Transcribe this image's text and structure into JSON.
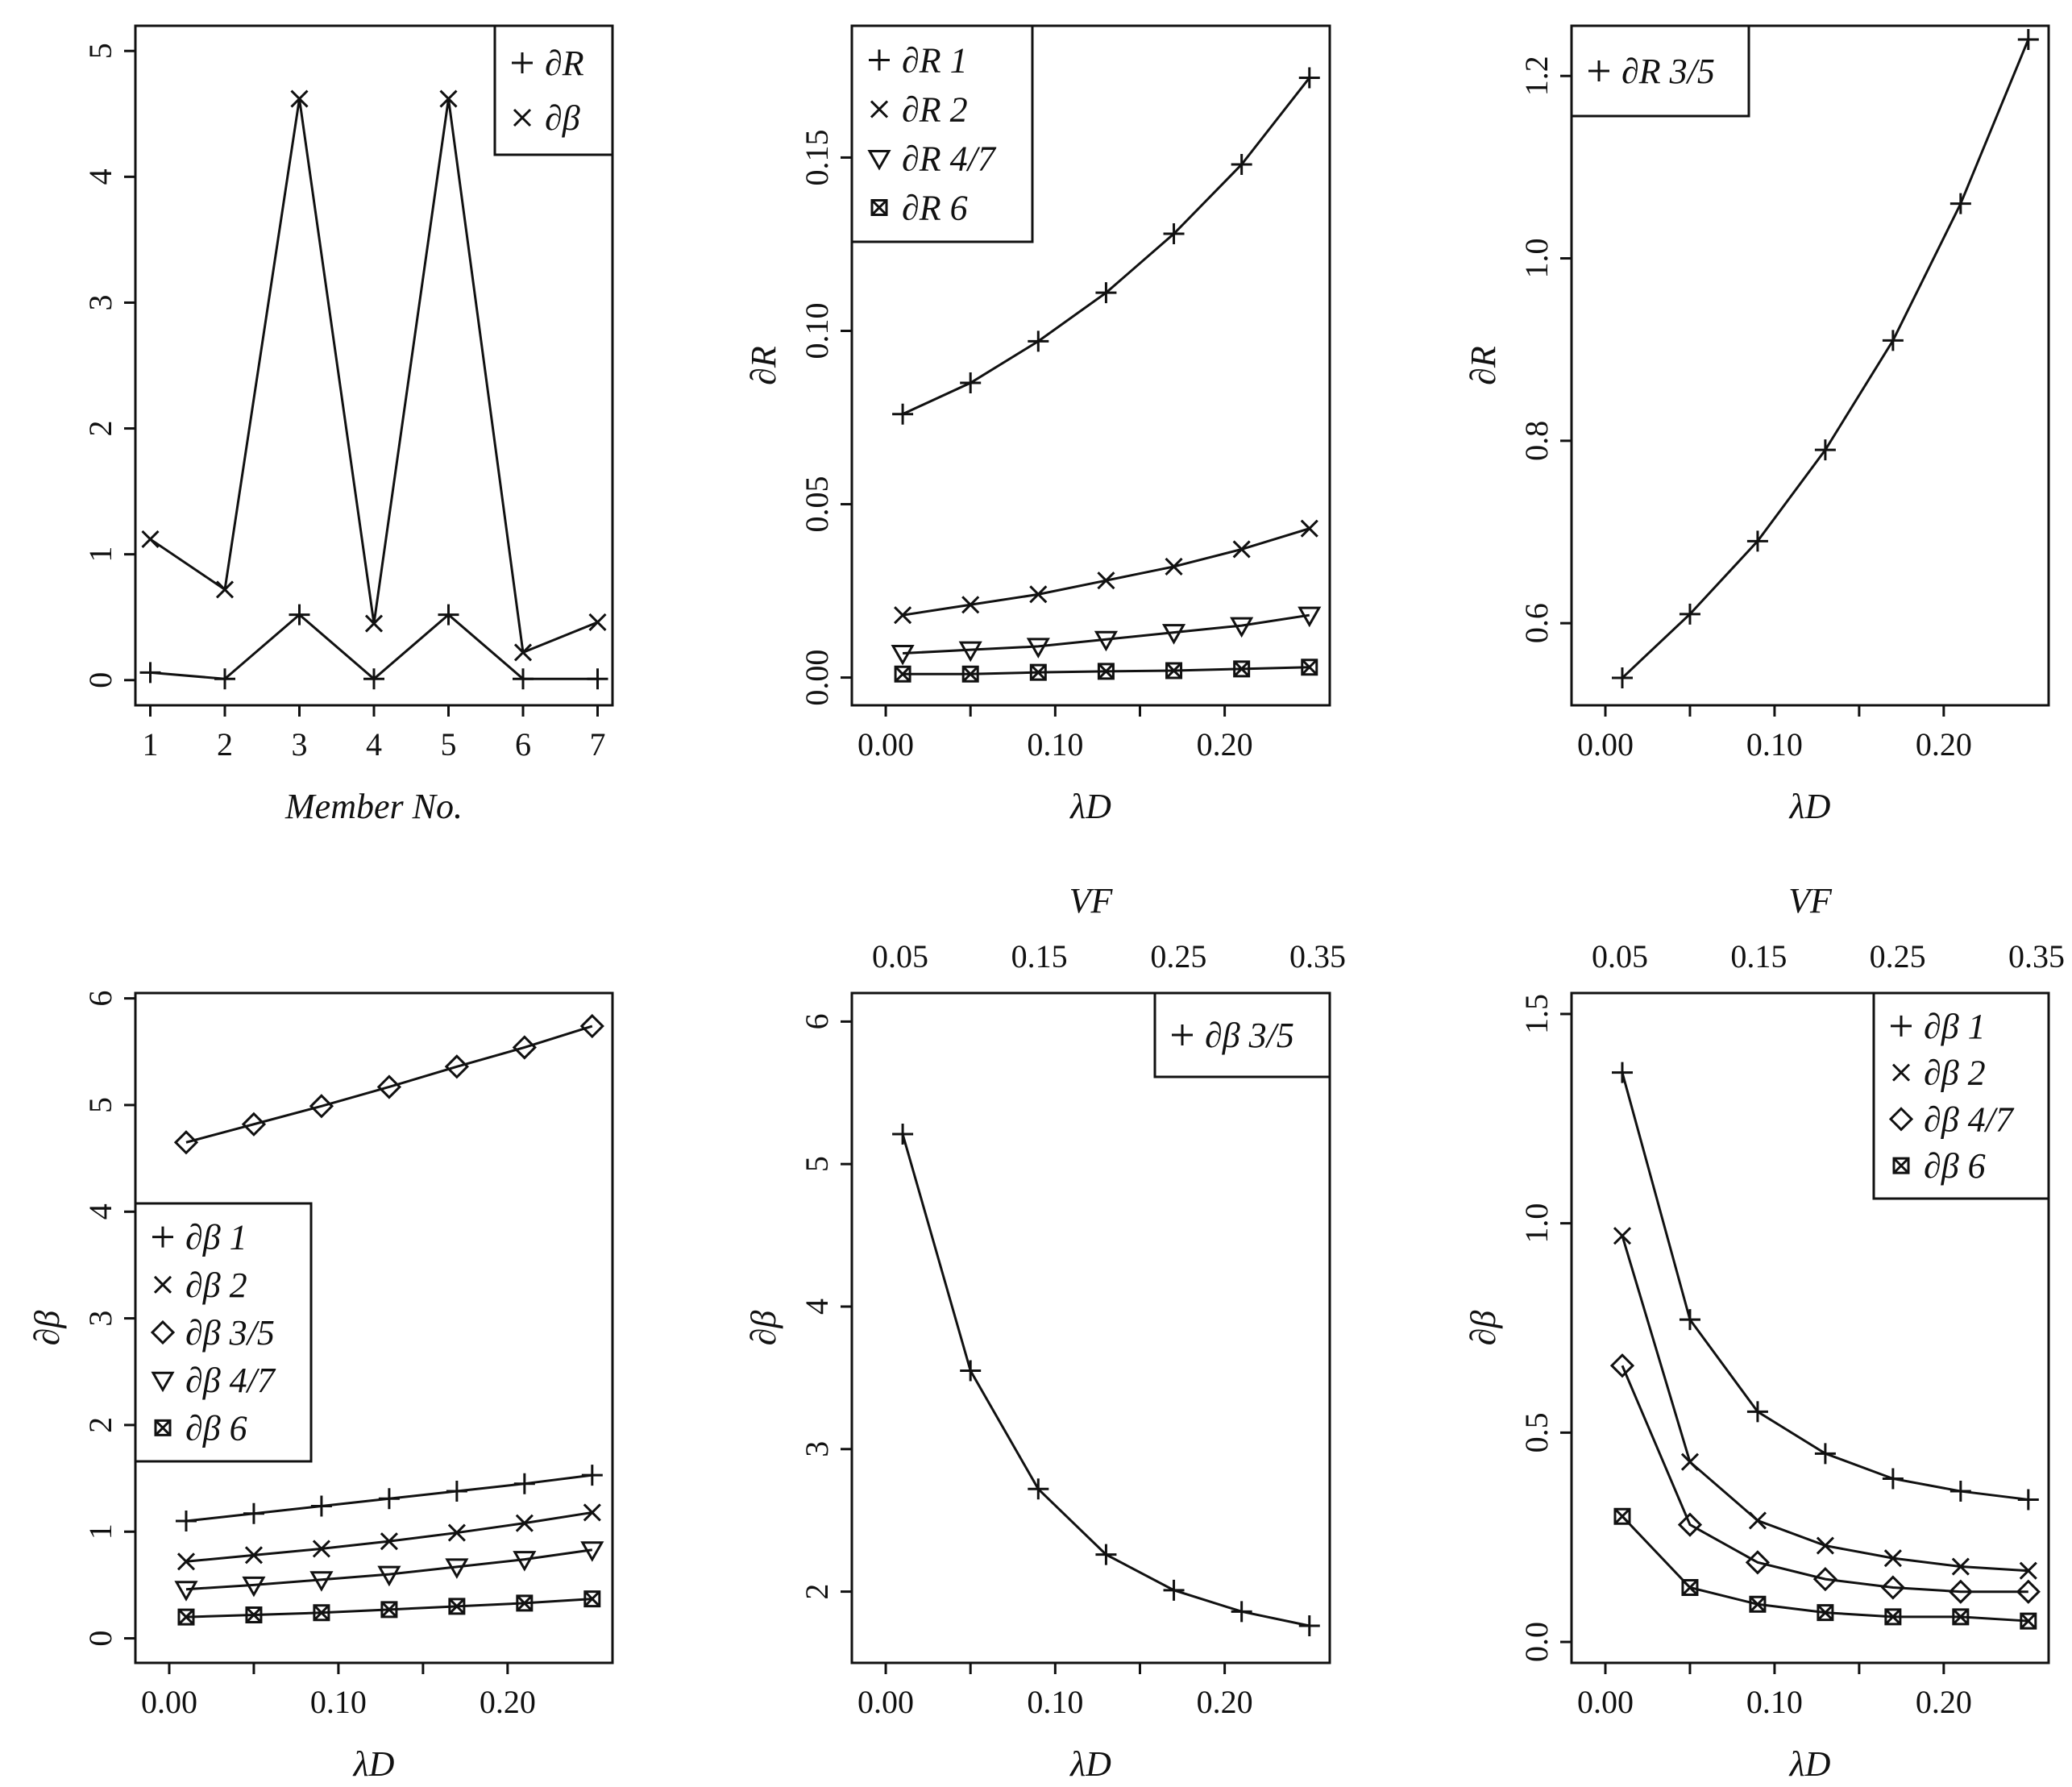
{
  "figure": {
    "colors": {
      "ink": "#111111",
      "background": "#ffffff"
    }
  },
  "chart_data": [
    {
      "id": "p1",
      "type": "line",
      "xlabel": "Member No.",
      "ylabel": "",
      "xlim": [
        0.8,
        7.2
      ],
      "ylim": [
        -0.2,
        5.2
      ],
      "x_ticks": [
        1,
        2,
        3,
        4,
        5,
        6,
        7
      ],
      "x_tick_labels": [
        "1",
        "2",
        "3",
        "4",
        "5",
        "6",
        "7"
      ],
      "y_ticks": [
        0,
        1,
        2,
        3,
        4,
        5
      ],
      "y_tick_labels": [
        "0",
        "1",
        "2",
        "3",
        "4",
        "5"
      ],
      "legend": "top-right",
      "series": [
        {
          "name": "∂R",
          "marker": "plus",
          "x": [
            1,
            2,
            3,
            4,
            5,
            6,
            7
          ],
          "values": [
            0.06,
            0.01,
            0.52,
            0.01,
            0.52,
            0.01,
            0.01
          ]
        },
        {
          "name": "∂β",
          "marker": "x",
          "x": [
            1,
            2,
            3,
            4,
            5,
            6,
            7
          ],
          "values": [
            1.12,
            0.72,
            4.62,
            0.45,
            4.62,
            0.22,
            0.46
          ]
        }
      ]
    },
    {
      "id": "p2",
      "type": "line",
      "xlabel": "λD",
      "ylabel": "∂R",
      "xlim": [
        -0.02,
        0.262
      ],
      "ylim": [
        -0.008,
        0.188
      ],
      "x_ticks": [
        0.0,
        0.1,
        0.2
      ],
      "x_tick_labels": [
        "0.00",
        "0.10",
        "0.20"
      ],
      "x_minor_ticks": [
        0.05,
        0.15
      ],
      "y_ticks": [
        0.0,
        0.05,
        0.1,
        0.15
      ],
      "y_tick_labels": [
        "0.00",
        "0.05",
        "0.10",
        "0.15"
      ],
      "legend": "top-left",
      "series": [
        {
          "name": "∂R 1",
          "marker": "plus",
          "x": [
            0.01,
            0.05,
            0.09,
            0.13,
            0.17,
            0.21,
            0.25
          ],
          "values": [
            0.076,
            0.085,
            0.097,
            0.111,
            0.128,
            0.148,
            0.173
          ]
        },
        {
          "name": "∂R 2",
          "marker": "x",
          "x": [
            0.01,
            0.05,
            0.09,
            0.13,
            0.17,
            0.21,
            0.25
          ],
          "values": [
            0.018,
            0.021,
            0.024,
            0.028,
            0.032,
            0.037,
            0.043
          ]
        },
        {
          "name": "∂R 4/7",
          "marker": "triangle-down",
          "x": [
            0.01,
            0.05,
            0.09,
            0.13,
            0.17,
            0.21,
            0.25
          ],
          "values": [
            0.007,
            0.008,
            0.009,
            0.011,
            0.013,
            0.015,
            0.018
          ]
        },
        {
          "name": "∂R 6",
          "marker": "square-x",
          "x": [
            0.01,
            0.05,
            0.09,
            0.13,
            0.17,
            0.21,
            0.25
          ],
          "values": [
            0.001,
            0.001,
            0.0015,
            0.0018,
            0.002,
            0.0025,
            0.003
          ]
        }
      ]
    },
    {
      "id": "p3",
      "type": "line",
      "xlabel": "λD",
      "ylabel": "∂R",
      "xlim": [
        -0.02,
        0.262
      ],
      "ylim": [
        0.51,
        1.255
      ],
      "x_ticks": [
        0.0,
        0.1,
        0.2
      ],
      "x_tick_labels": [
        "0.00",
        "0.10",
        "0.20"
      ],
      "x_minor_ticks": [
        0.05,
        0.15
      ],
      "y_ticks": [
        0.6,
        0.8,
        1.0,
        1.2
      ],
      "y_tick_labels": [
        "0.6",
        "0.8",
        "1.0",
        "1.2"
      ],
      "legend": "top-left",
      "series": [
        {
          "name": "∂R 3/5",
          "marker": "plus",
          "x": [
            0.01,
            0.05,
            0.09,
            0.13,
            0.17,
            0.21,
            0.25
          ],
          "values": [
            0.54,
            0.61,
            0.69,
            0.79,
            0.91,
            1.06,
            1.24
          ]
        }
      ]
    },
    {
      "id": "p4",
      "type": "line",
      "xlabel": "λD",
      "ylabel": "∂β",
      "xlim": [
        -0.02,
        0.262
      ],
      "ylim": [
        -0.23,
        6.05
      ],
      "x_ticks": [
        0.0,
        0.1,
        0.2
      ],
      "x_tick_labels": [
        "0.00",
        "0.10",
        "0.20"
      ],
      "x_minor_ticks": [
        0.05,
        0.15
      ],
      "y_ticks": [
        0,
        1,
        2,
        3,
        4,
        5,
        6
      ],
      "y_tick_labels": [
        "0",
        "1",
        "2",
        "3",
        "4",
        "5",
        "6"
      ],
      "legend": "center-left",
      "series": [
        {
          "name": "∂β 1",
          "marker": "plus",
          "x": [
            0.01,
            0.05,
            0.09,
            0.13,
            0.17,
            0.21,
            0.25
          ],
          "values": [
            1.1,
            1.17,
            1.24,
            1.31,
            1.38,
            1.45,
            1.53
          ]
        },
        {
          "name": "∂β 2",
          "marker": "x",
          "x": [
            0.01,
            0.05,
            0.09,
            0.13,
            0.17,
            0.21,
            0.25
          ],
          "values": [
            0.72,
            0.78,
            0.84,
            0.91,
            0.99,
            1.08,
            1.18
          ]
        },
        {
          "name": "∂β 3/5",
          "marker": "diamond",
          "x": [
            0.01,
            0.05,
            0.09,
            0.13,
            0.17,
            0.21,
            0.25
          ],
          "values": [
            4.65,
            4.82,
            4.99,
            5.17,
            5.36,
            5.54,
            5.74
          ]
        },
        {
          "name": "∂β 4/7",
          "marker": "triangle-down",
          "x": [
            0.01,
            0.05,
            0.09,
            0.13,
            0.17,
            0.21,
            0.25
          ],
          "values": [
            0.46,
            0.5,
            0.55,
            0.6,
            0.67,
            0.74,
            0.83
          ]
        },
        {
          "name": "∂β 6",
          "marker": "square-x",
          "x": [
            0.01,
            0.05,
            0.09,
            0.13,
            0.17,
            0.21,
            0.25
          ],
          "values": [
            0.2,
            0.22,
            0.24,
            0.27,
            0.3,
            0.33,
            0.37
          ]
        }
      ]
    },
    {
      "id": "p5",
      "type": "line",
      "xlabel": "λD",
      "ylabel": "∂β",
      "top_axis_label": "VF",
      "top_axis_tick_labels": [
        "0.05",
        "0.15",
        "0.25",
        "0.35"
      ],
      "xlim": [
        -0.02,
        0.262
      ],
      "ylim": [
        1.5,
        6.2
      ],
      "x_ticks": [
        0.0,
        0.1,
        0.2
      ],
      "x_tick_labels": [
        "0.00",
        "0.10",
        "0.20"
      ],
      "x_minor_ticks": [
        0.05,
        0.15
      ],
      "y_ticks": [
        2,
        3,
        4,
        5,
        6
      ],
      "y_tick_labels": [
        "2",
        "3",
        "4",
        "5",
        "6"
      ],
      "legend": "top-right",
      "series": [
        {
          "name": "∂β 3/5",
          "marker": "plus",
          "x": [
            0.01,
            0.05,
            0.09,
            0.13,
            0.17,
            0.21,
            0.25
          ],
          "values": [
            5.21,
            3.55,
            2.72,
            2.26,
            2.01,
            1.86,
            1.76
          ]
        }
      ]
    },
    {
      "id": "p6",
      "type": "line",
      "xlabel": "λD",
      "ylabel": "∂β",
      "top_axis_label": "VF",
      "top_axis_tick_labels": [
        "0.05",
        "0.15",
        "0.25",
        "0.35"
      ],
      "xlim": [
        -0.02,
        0.262
      ],
      "ylim": [
        -0.05,
        1.55
      ],
      "x_ticks": [
        0.0,
        0.1,
        0.2
      ],
      "x_tick_labels": [
        "0.00",
        "0.10",
        "0.20"
      ],
      "x_minor_ticks": [
        0.05,
        0.15
      ],
      "y_ticks": [
        0.0,
        0.5,
        1.0,
        1.5
      ],
      "y_tick_labels": [
        "0.0",
        "0.5",
        "1.0",
        "1.5"
      ],
      "legend": "top-right",
      "series": [
        {
          "name": "∂β 1",
          "marker": "plus",
          "x": [
            0.01,
            0.05,
            0.09,
            0.13,
            0.17,
            0.21,
            0.25
          ],
          "values": [
            1.36,
            0.77,
            0.55,
            0.45,
            0.39,
            0.36,
            0.34
          ]
        },
        {
          "name": "∂β 2",
          "marker": "x",
          "x": [
            0.01,
            0.05,
            0.09,
            0.13,
            0.17,
            0.21,
            0.25
          ],
          "values": [
            0.97,
            0.43,
            0.29,
            0.23,
            0.2,
            0.18,
            0.17
          ]
        },
        {
          "name": "∂β 4/7",
          "marker": "diamond",
          "x": [
            0.01,
            0.05,
            0.09,
            0.13,
            0.17,
            0.21,
            0.25
          ],
          "values": [
            0.66,
            0.28,
            0.19,
            0.15,
            0.13,
            0.12,
            0.12
          ]
        },
        {
          "name": "∂β 6",
          "marker": "square-x",
          "x": [
            0.01,
            0.05,
            0.09,
            0.13,
            0.17,
            0.21,
            0.25
          ],
          "values": [
            0.3,
            0.13,
            0.09,
            0.07,
            0.06,
            0.06,
            0.05
          ]
        }
      ]
    }
  ]
}
